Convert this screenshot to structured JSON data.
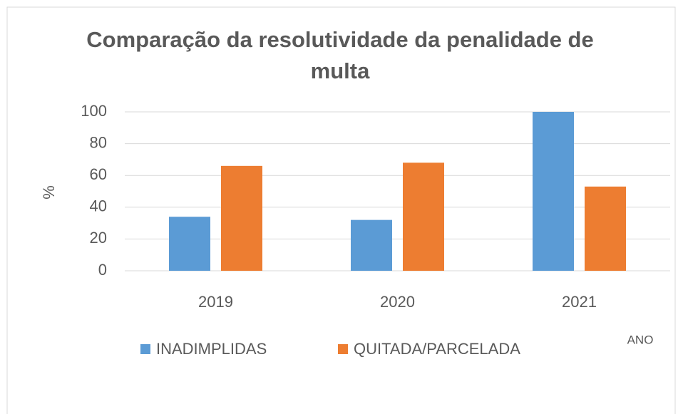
{
  "chart_data": {
    "type": "bar",
    "title": "Comparação da resolutividade da penalidade de multa",
    "ylabel": "%",
    "xlabel": "ANO",
    "categories": [
      "2019",
      "2020",
      "2021"
    ],
    "series": [
      {
        "name": "INADIMPLIDAS",
        "color": "#5b9bd5",
        "values": [
          34,
          32,
          100
        ]
      },
      {
        "name": "QUITADA/PARCELADA",
        "color": "#ed7d31",
        "values": [
          66,
          68,
          53
        ]
      }
    ],
    "ylim": [
      0,
      100
    ],
    "yticks": [
      0,
      20,
      40,
      60,
      80,
      100
    ],
    "grid": true,
    "legend": "bottom"
  }
}
